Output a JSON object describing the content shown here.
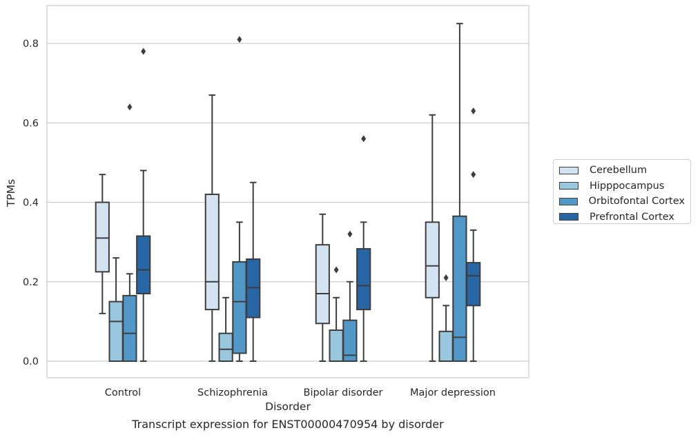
{
  "chart_data": {
    "type": "boxplot",
    "title": "",
    "caption": "Transcript expression for ENST00000470954 by disorder",
    "xlabel": "Disorder",
    "ylabel": "TPMs",
    "ylim": [
      -0.04,
      0.895
    ],
    "yticks": [
      0.0,
      0.2,
      0.4,
      0.6,
      0.8
    ],
    "ytick_labels": [
      "0.0",
      "0.2",
      "0.4",
      "0.6",
      "0.8"
    ],
    "grid": "horizontal",
    "legend_position": "right",
    "categories": [
      "Control",
      "Schizophrenia",
      "Bipolar disorder",
      "Major depression"
    ],
    "series": [
      {
        "name": "Cerebellum",
        "color": "#d4e3f2",
        "boxes": [
          {
            "whislo": 0.12,
            "q1": 0.225,
            "med": 0.31,
            "q3": 0.4,
            "whishi": 0.47,
            "fliers": []
          },
          {
            "whislo": 0.0,
            "q1": 0.13,
            "med": 0.2,
            "q3": 0.42,
            "whishi": 0.67,
            "fliers": []
          },
          {
            "whislo": 0.0,
            "q1": 0.095,
            "med": 0.17,
            "q3": 0.293,
            "whishi": 0.37,
            "fliers": []
          },
          {
            "whislo": 0.0,
            "q1": 0.16,
            "med": 0.24,
            "q3": 0.35,
            "whishi": 0.62,
            "fliers": []
          }
        ]
      },
      {
        "name": "Hipppocampus",
        "color": "#9ac7e0",
        "boxes": [
          {
            "whislo": 0.0,
            "q1": 0.0,
            "med": 0.1,
            "q3": 0.15,
            "whishi": 0.26,
            "fliers": []
          },
          {
            "whislo": 0.0,
            "q1": 0.0,
            "med": 0.03,
            "q3": 0.07,
            "whishi": 0.16,
            "fliers": []
          },
          {
            "whislo": 0.0,
            "q1": 0.0,
            "med": 0.0,
            "q3": 0.078,
            "whishi": 0.16,
            "fliers": [
              0.23
            ]
          },
          {
            "whislo": 0.0,
            "q1": 0.0,
            "med": 0.0,
            "q3": 0.075,
            "whishi": 0.14,
            "fliers": [
              0.21
            ]
          }
        ]
      },
      {
        "name": "Orbitofontal Cortex",
        "color": "#5198c8",
        "boxes": [
          {
            "whislo": 0.0,
            "q1": 0.0,
            "med": 0.07,
            "q3": 0.165,
            "whishi": 0.22,
            "fliers": [
              0.64
            ]
          },
          {
            "whislo": 0.0,
            "q1": 0.02,
            "med": 0.15,
            "q3": 0.25,
            "whishi": 0.35,
            "fliers": [
              0.81
            ]
          },
          {
            "whislo": 0.0,
            "q1": 0.0,
            "med": 0.015,
            "q3": 0.103,
            "whishi": 0.2,
            "fliers": [
              0.32
            ]
          },
          {
            "whislo": 0.0,
            "q1": 0.0,
            "med": 0.06,
            "q3": 0.365,
            "whishi": 0.85,
            "fliers": []
          }
        ]
      },
      {
        "name": "Prefrontal Cortex",
        "color": "#2865a5",
        "boxes": [
          {
            "whislo": 0.0,
            "q1": 0.17,
            "med": 0.23,
            "q3": 0.315,
            "whishi": 0.48,
            "fliers": [
              0.78
            ]
          },
          {
            "whislo": 0.0,
            "q1": 0.11,
            "med": 0.185,
            "q3": 0.257,
            "whishi": 0.45,
            "fliers": []
          },
          {
            "whislo": 0.0,
            "q1": 0.13,
            "med": 0.19,
            "q3": 0.283,
            "whishi": 0.35,
            "fliers": [
              0.56
            ]
          },
          {
            "whislo": 0.0,
            "q1": 0.14,
            "med": 0.215,
            "q3": 0.248,
            "whishi": 0.33,
            "fliers": [
              0.47,
              0.63
            ]
          }
        ]
      }
    ]
  }
}
